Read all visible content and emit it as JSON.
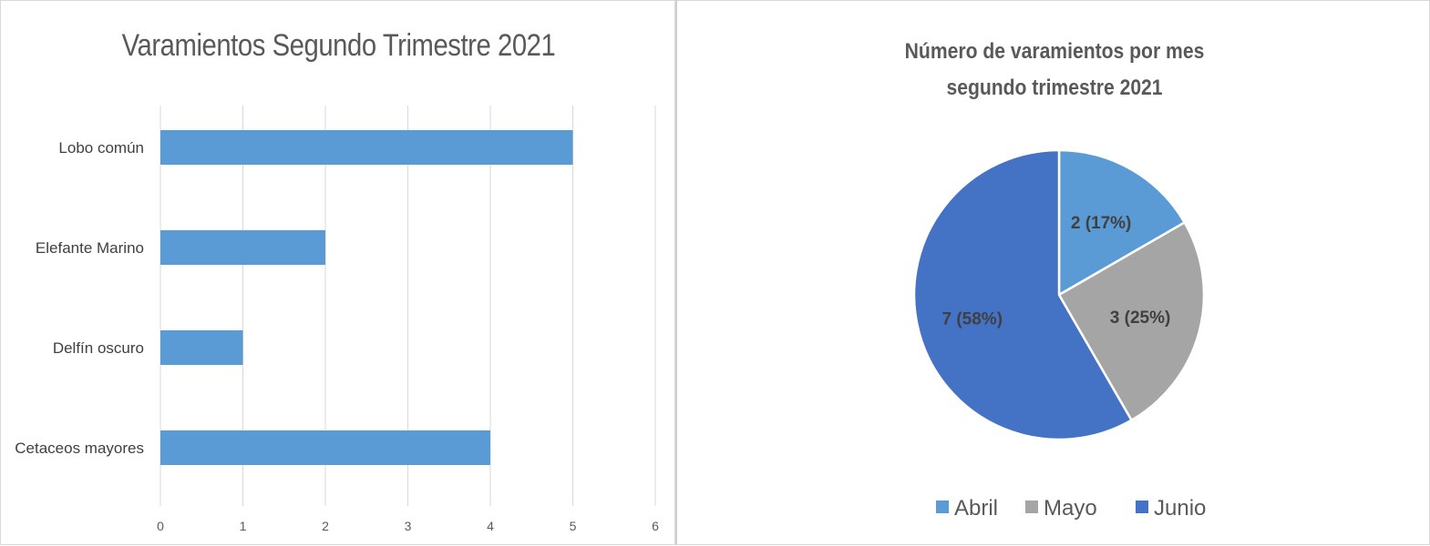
{
  "colors": {
    "bar": "#5b9bd5",
    "grid": "#d9d9d9",
    "abril": "#5b9bd5",
    "mayo": "#a5a5a5",
    "junio": "#4472c4"
  },
  "chart_data": [
    {
      "type": "bar",
      "orientation": "horizontal",
      "title": "Varamientos Segundo Trimestre 2021",
      "categories": [
        "Lobo común",
        "Elefante Marino",
        "Delfín oscuro",
        "Cetaceos mayores"
      ],
      "values": [
        5,
        2,
        1,
        4
      ],
      "xlim": [
        0,
        6
      ],
      "xticks": [
        "0",
        "1",
        "2",
        "3",
        "4",
        "5",
        "6"
      ],
      "grid": "vertical"
    },
    {
      "type": "pie",
      "title_lines": [
        "Número de varamientos por mes",
        "segundo trimestre 2021"
      ],
      "categories": [
        "Abril",
        "Mayo",
        "Junio"
      ],
      "values": [
        2,
        3,
        7
      ],
      "data_labels": [
        "2 (17%)",
        "3 (25%)",
        "7 (58%)"
      ],
      "legend": "bottom"
    }
  ]
}
